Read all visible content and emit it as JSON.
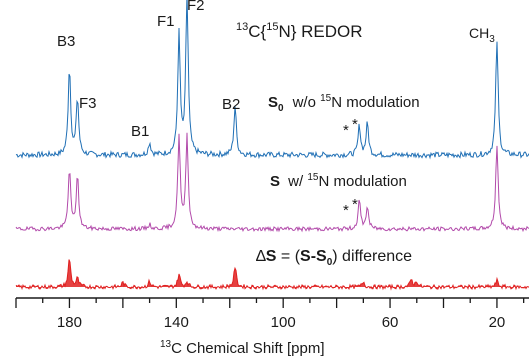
{
  "chart_data": {
    "type": "line",
    "title": "13C{15N} REDOR",
    "title_parts": {
      "a_sup": "13",
      "b": "C{",
      "c_sup": "15",
      "d": "N} REDOR"
    },
    "xlabel": "13C Chemical Shift [ppm]",
    "xlabel_parts": {
      "a_sup": "13",
      "b": "C Chemical Shift [ppm]"
    },
    "xlim": [
      200,
      8
    ],
    "x_reversed": true,
    "x_ticks": [
      180,
      140,
      100,
      60,
      20
    ],
    "peak_labels": [
      {
        "text": "B3",
        "ppm": 180
      },
      {
        "text": "F3",
        "ppm": 177
      },
      {
        "text": "B1",
        "ppm": 150
      },
      {
        "text": "F1",
        "ppm": 139
      },
      {
        "text": "F2",
        "ppm": 136
      },
      {
        "text": "B2",
        "ppm": 118
      },
      {
        "text": "CH3",
        "text_main": "CH",
        "text_sub": "3",
        "ppm": 20
      }
    ],
    "asterisk": "*",
    "series": [
      {
        "name": "S0 w/o 15N modulation",
        "label_bold": "S",
        "label_bold_sub": "0",
        "label_a": "w/o ",
        "label_sup": "15",
        "label_b": "N modulation",
        "color": "#1f6fb5",
        "peaks": [
          [
            180,
            0.72
          ],
          [
            177,
            0.46
          ],
          [
            150,
            0.1
          ],
          [
            139,
            0.98
          ],
          [
            136,
            1.3
          ],
          [
            118,
            0.4
          ],
          [
            71.5,
            0.24
          ],
          [
            68.5,
            0.26
          ],
          [
            20,
            0.94
          ]
        ]
      },
      {
        "name": "S w/ 15N modulation",
        "label_bold": "S",
        "label_a": " w/ ",
        "label_sup": "15",
        "label_b": "N modulation",
        "color": "#b24aaa",
        "peaks": [
          [
            180,
            0.68
          ],
          [
            177,
            0.6
          ],
          [
            150,
            0.05
          ],
          [
            139,
            1.05
          ],
          [
            136,
            1.05
          ],
          [
            71.5,
            0.32
          ],
          [
            68.5,
            0.25
          ],
          [
            20,
            0.96
          ]
        ]
      },
      {
        "name": "ΔS = (S-S0) difference",
        "label_delta": "∆",
        "label_bold": "S",
        "label_eq": " = (",
        "label_bold2": "S-S",
        "label_bold2_sub": "0",
        "label_c": ")  difference",
        "color": "#e02020",
        "peaks": [
          [
            180,
            0.62
          ],
          [
            177,
            0.18
          ],
          [
            160,
            0.1
          ],
          [
            150,
            0.12
          ],
          [
            139,
            0.28
          ],
          [
            136,
            0.12
          ],
          [
            118,
            0.44
          ],
          [
            70,
            0.12
          ],
          [
            52,
            0.16
          ],
          [
            50,
            0.12
          ],
          [
            20,
            0.14
          ]
        ]
      }
    ]
  }
}
